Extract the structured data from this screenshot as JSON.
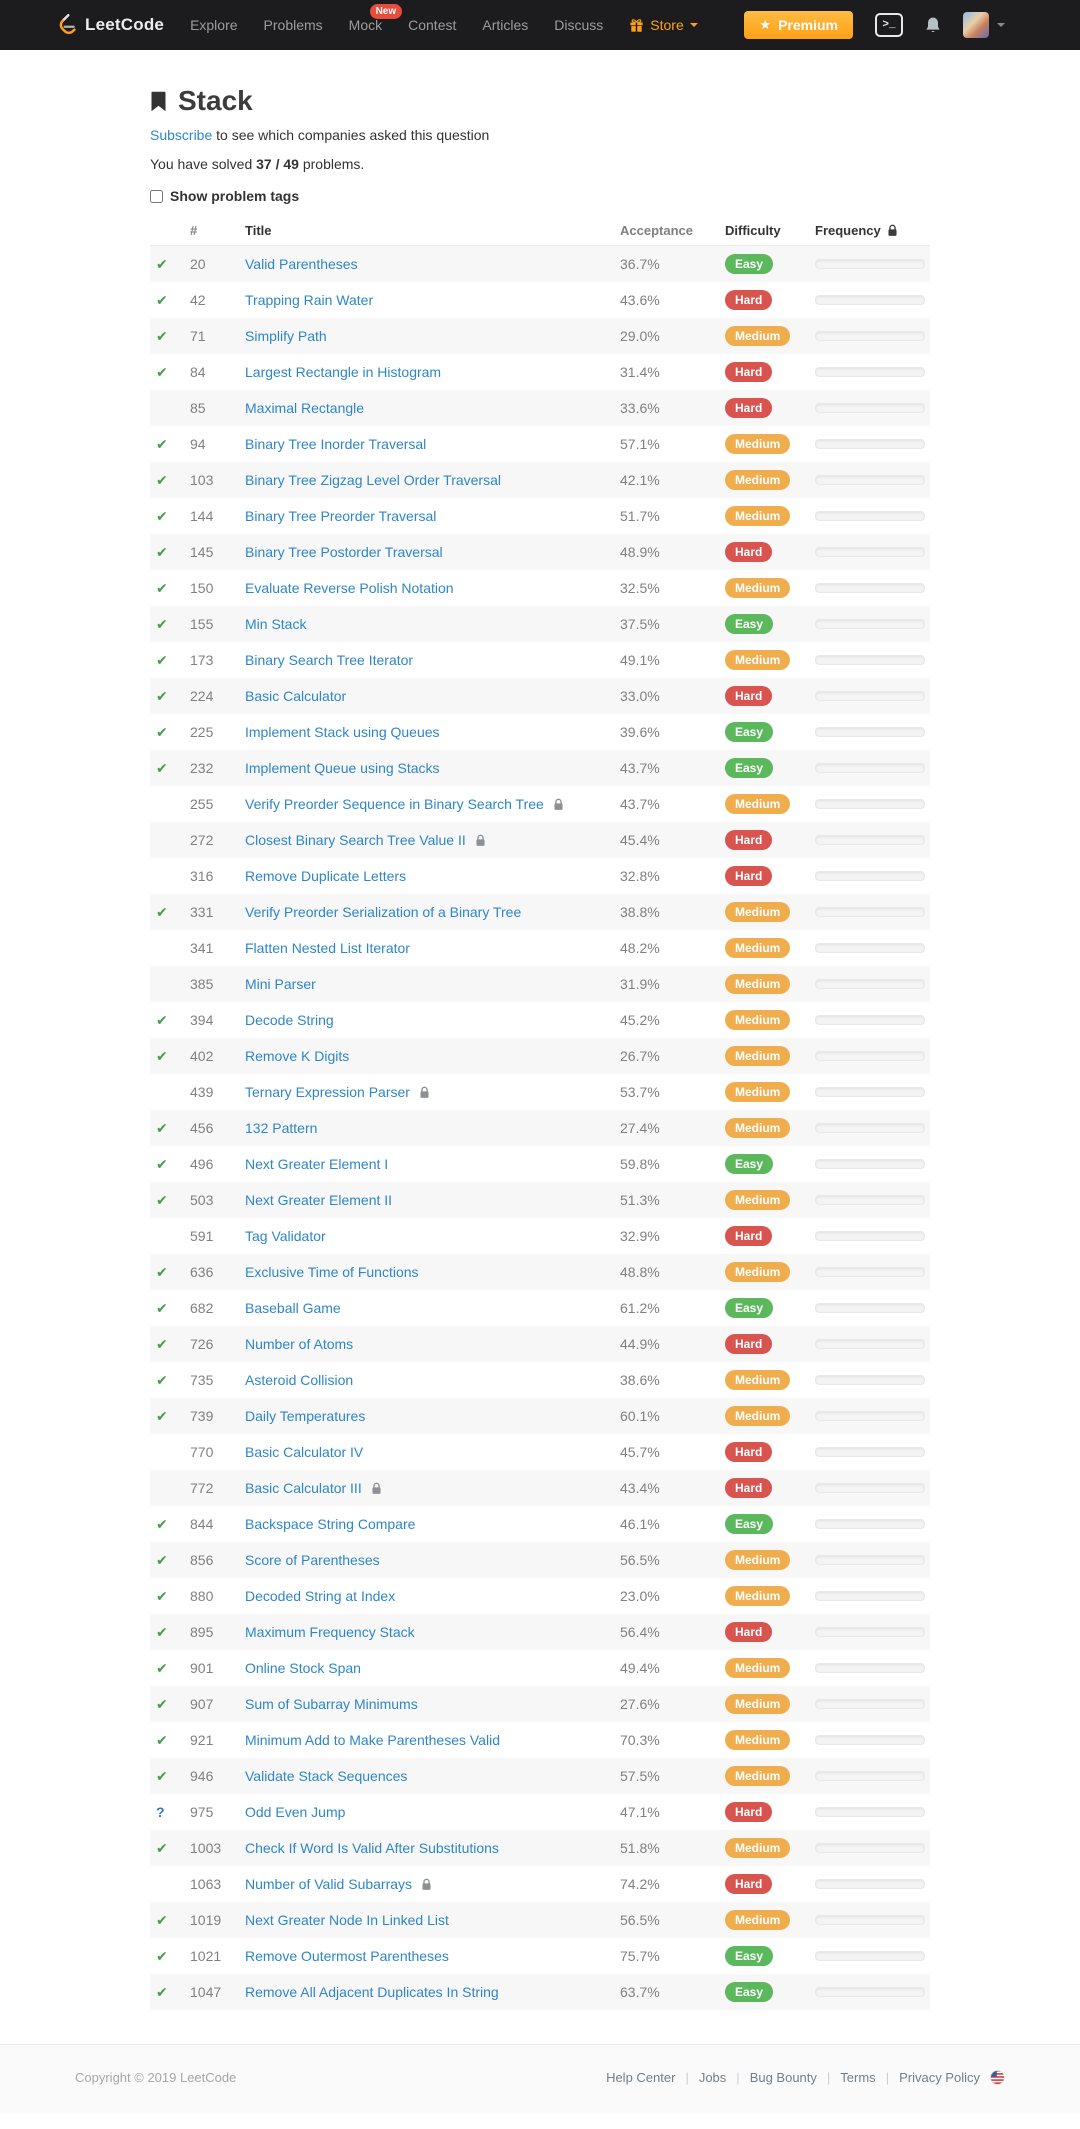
{
  "header": {
    "logo_text": "LeetCode",
    "nav": [
      {
        "label": "Explore"
      },
      {
        "label": "Problems"
      },
      {
        "label": "Mock",
        "badge": "New"
      },
      {
        "label": "Contest"
      },
      {
        "label": "Articles"
      },
      {
        "label": "Discuss"
      }
    ],
    "store_label": "Store",
    "premium_label": "Premium"
  },
  "page": {
    "title": "Stack",
    "subscribe_link": "Subscribe",
    "subscribe_rest": " to see which companies asked this question",
    "solved_prefix": "You have solved ",
    "solved_count": "37 / 49",
    "solved_suffix": " problems.",
    "show_tags_label": "Show problem tags"
  },
  "icons": {
    "premium_star": "★",
    "solved_check": "✔",
    "attempted_mark": "?"
  },
  "table": {
    "headers": {
      "number": "#",
      "title": "Title",
      "acceptance": "Acceptance",
      "difficulty": "Difficulty",
      "frequency": "Frequency"
    },
    "rows": [
      {
        "status": "solved",
        "number": "20",
        "title": "Valid Parentheses",
        "locked": false,
        "acceptance": "36.7%",
        "difficulty": "Easy"
      },
      {
        "status": "solved",
        "number": "42",
        "title": "Trapping Rain Water",
        "locked": false,
        "acceptance": "43.6%",
        "difficulty": "Hard"
      },
      {
        "status": "solved",
        "number": "71",
        "title": "Simplify Path",
        "locked": false,
        "acceptance": "29.0%",
        "difficulty": "Medium"
      },
      {
        "status": "solved",
        "number": "84",
        "title": "Largest Rectangle in Histogram",
        "locked": false,
        "acceptance": "31.4%",
        "difficulty": "Hard"
      },
      {
        "status": "none",
        "number": "85",
        "title": "Maximal Rectangle",
        "locked": false,
        "acceptance": "33.6%",
        "difficulty": "Hard"
      },
      {
        "status": "solved",
        "number": "94",
        "title": "Binary Tree Inorder Traversal",
        "locked": false,
        "acceptance": "57.1%",
        "difficulty": "Medium"
      },
      {
        "status": "solved",
        "number": "103",
        "title": "Binary Tree Zigzag Level Order Traversal",
        "locked": false,
        "acceptance": "42.1%",
        "difficulty": "Medium"
      },
      {
        "status": "solved",
        "number": "144",
        "title": "Binary Tree Preorder Traversal",
        "locked": false,
        "acceptance": "51.7%",
        "difficulty": "Medium"
      },
      {
        "status": "solved",
        "number": "145",
        "title": "Binary Tree Postorder Traversal",
        "locked": false,
        "acceptance": "48.9%",
        "difficulty": "Hard"
      },
      {
        "status": "solved",
        "number": "150",
        "title": "Evaluate Reverse Polish Notation",
        "locked": false,
        "acceptance": "32.5%",
        "difficulty": "Medium"
      },
      {
        "status": "solved",
        "number": "155",
        "title": "Min Stack",
        "locked": false,
        "acceptance": "37.5%",
        "difficulty": "Easy"
      },
      {
        "status": "solved",
        "number": "173",
        "title": "Binary Search Tree Iterator",
        "locked": false,
        "acceptance": "49.1%",
        "difficulty": "Medium"
      },
      {
        "status": "solved",
        "number": "224",
        "title": "Basic Calculator",
        "locked": false,
        "acceptance": "33.0%",
        "difficulty": "Hard"
      },
      {
        "status": "solved",
        "number": "225",
        "title": "Implement Stack using Queues",
        "locked": false,
        "acceptance": "39.6%",
        "difficulty": "Easy"
      },
      {
        "status": "solved",
        "number": "232",
        "title": "Implement Queue using Stacks",
        "locked": false,
        "acceptance": "43.7%",
        "difficulty": "Easy"
      },
      {
        "status": "none",
        "number": "255",
        "title": "Verify Preorder Sequence in Binary Search Tree",
        "locked": true,
        "acceptance": "43.7%",
        "difficulty": "Medium"
      },
      {
        "status": "none",
        "number": "272",
        "title": "Closest Binary Search Tree Value II",
        "locked": true,
        "acceptance": "45.4%",
        "difficulty": "Hard"
      },
      {
        "status": "none",
        "number": "316",
        "title": "Remove Duplicate Letters",
        "locked": false,
        "acceptance": "32.8%",
        "difficulty": "Hard"
      },
      {
        "status": "solved",
        "number": "331",
        "title": "Verify Preorder Serialization of a Binary Tree",
        "locked": false,
        "acceptance": "38.8%",
        "difficulty": "Medium"
      },
      {
        "status": "none",
        "number": "341",
        "title": "Flatten Nested List Iterator",
        "locked": false,
        "acceptance": "48.2%",
        "difficulty": "Medium"
      },
      {
        "status": "none",
        "number": "385",
        "title": "Mini Parser",
        "locked": false,
        "acceptance": "31.9%",
        "difficulty": "Medium"
      },
      {
        "status": "solved",
        "number": "394",
        "title": "Decode String",
        "locked": false,
        "acceptance": "45.2%",
        "difficulty": "Medium"
      },
      {
        "status": "solved",
        "number": "402",
        "title": "Remove K Digits",
        "locked": false,
        "acceptance": "26.7%",
        "difficulty": "Medium"
      },
      {
        "status": "none",
        "number": "439",
        "title": "Ternary Expression Parser",
        "locked": true,
        "acceptance": "53.7%",
        "difficulty": "Medium"
      },
      {
        "status": "solved",
        "number": "456",
        "title": "132 Pattern",
        "locked": false,
        "acceptance": "27.4%",
        "difficulty": "Medium"
      },
      {
        "status": "solved",
        "number": "496",
        "title": "Next Greater Element I",
        "locked": false,
        "acceptance": "59.8%",
        "difficulty": "Easy"
      },
      {
        "status": "solved",
        "number": "503",
        "title": "Next Greater Element II",
        "locked": false,
        "acceptance": "51.3%",
        "difficulty": "Medium"
      },
      {
        "status": "none",
        "number": "591",
        "title": "Tag Validator",
        "locked": false,
        "acceptance": "32.9%",
        "difficulty": "Hard"
      },
      {
        "status": "solved",
        "number": "636",
        "title": "Exclusive Time of Functions",
        "locked": false,
        "acceptance": "48.8%",
        "difficulty": "Medium"
      },
      {
        "status": "solved",
        "number": "682",
        "title": "Baseball Game",
        "locked": false,
        "acceptance": "61.2%",
        "difficulty": "Easy"
      },
      {
        "status": "solved",
        "number": "726",
        "title": "Number of Atoms",
        "locked": false,
        "acceptance": "44.9%",
        "difficulty": "Hard"
      },
      {
        "status": "solved",
        "number": "735",
        "title": "Asteroid Collision",
        "locked": false,
        "acceptance": "38.6%",
        "difficulty": "Medium"
      },
      {
        "status": "solved",
        "number": "739",
        "title": "Daily Temperatures",
        "locked": false,
        "acceptance": "60.1%",
        "difficulty": "Medium"
      },
      {
        "status": "none",
        "number": "770",
        "title": "Basic Calculator IV",
        "locked": false,
        "acceptance": "45.7%",
        "difficulty": "Hard"
      },
      {
        "status": "none",
        "number": "772",
        "title": "Basic Calculator III",
        "locked": true,
        "acceptance": "43.4%",
        "difficulty": "Hard"
      },
      {
        "status": "solved",
        "number": "844",
        "title": "Backspace String Compare",
        "locked": false,
        "acceptance": "46.1%",
        "difficulty": "Easy"
      },
      {
        "status": "solved",
        "number": "856",
        "title": "Score of Parentheses",
        "locked": false,
        "acceptance": "56.5%",
        "difficulty": "Medium"
      },
      {
        "status": "solved",
        "number": "880",
        "title": "Decoded String at Index",
        "locked": false,
        "acceptance": "23.0%",
        "difficulty": "Medium"
      },
      {
        "status": "solved",
        "number": "895",
        "title": "Maximum Frequency Stack",
        "locked": false,
        "acceptance": "56.4%",
        "difficulty": "Hard"
      },
      {
        "status": "solved",
        "number": "901",
        "title": "Online Stock Span",
        "locked": false,
        "acceptance": "49.4%",
        "difficulty": "Medium"
      },
      {
        "status": "solved",
        "number": "907",
        "title": "Sum of Subarray Minimums",
        "locked": false,
        "acceptance": "27.6%",
        "difficulty": "Medium"
      },
      {
        "status": "solved",
        "number": "921",
        "title": "Minimum Add to Make Parentheses Valid",
        "locked": false,
        "acceptance": "70.3%",
        "difficulty": "Medium"
      },
      {
        "status": "solved",
        "number": "946",
        "title": "Validate Stack Sequences",
        "locked": false,
        "acceptance": "57.5%",
        "difficulty": "Medium"
      },
      {
        "status": "attempted",
        "number": "975",
        "title": "Odd Even Jump",
        "locked": false,
        "acceptance": "47.1%",
        "difficulty": "Hard"
      },
      {
        "status": "solved",
        "number": "1003",
        "title": "Check If Word Is Valid After Substitutions",
        "locked": false,
        "acceptance": "51.8%",
        "difficulty": "Medium"
      },
      {
        "status": "none",
        "number": "1063",
        "title": "Number of Valid Subarrays",
        "locked": true,
        "acceptance": "74.2%",
        "difficulty": "Hard"
      },
      {
        "status": "solved",
        "number": "1019",
        "title": "Next Greater Node In Linked List",
        "locked": false,
        "acceptance": "56.5%",
        "difficulty": "Medium"
      },
      {
        "status": "solved",
        "number": "1021",
        "title": "Remove Outermost Parentheses",
        "locked": false,
        "acceptance": "75.7%",
        "difficulty": "Easy"
      },
      {
        "status": "solved",
        "number": "1047",
        "title": "Remove All Adjacent Duplicates In String",
        "locked": false,
        "acceptance": "63.7%",
        "difficulty": "Easy"
      }
    ]
  },
  "footer": {
    "copyright": "Copyright © 2019 LeetCode",
    "links": [
      "Help Center",
      "Jobs",
      "Bug Bounty",
      "Terms",
      "Privacy Policy"
    ]
  },
  "colors": {
    "accent": "#ffa116",
    "link": "#2e86c8",
    "easy": "#5cb85c",
    "medium": "#f0ad4e",
    "hard": "#d9534f",
    "solved": "#43a047",
    "attempted": "#337ab7",
    "new_badge": "#e74c3c",
    "navbar_bg": "#1c1c1e"
  }
}
